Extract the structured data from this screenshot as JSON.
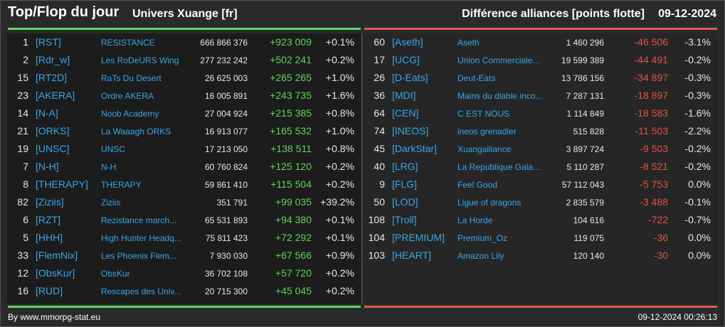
{
  "header": {
    "title": "Top/Flop du jour",
    "universe": "Univers Xuange [fr]",
    "subtitle": "Différence alliances [points flotte]",
    "date": "09-12-2024"
  },
  "colors": {
    "gain": "#5cd65c",
    "loss": "#e0524b",
    "link": "#3aa6e8"
  },
  "top": [
    {
      "rank": "1",
      "tag": "[RST]",
      "name": "RESISTANCE",
      "points": "666 866 376",
      "delta": "+923 009",
      "pct": "+0.1%"
    },
    {
      "rank": "2",
      "tag": "[Rdr_w]",
      "name": "Les RoDeURS Wing",
      "points": "277 232 242",
      "delta": "+502 241",
      "pct": "+0.2%"
    },
    {
      "rank": "15",
      "tag": "[RT2D]",
      "name": "RaTs Du Desert",
      "points": "26 625 003",
      "delta": "+265 265",
      "pct": "+1.0%"
    },
    {
      "rank": "23",
      "tag": "[AKERA]",
      "name": "Ordre AKERA",
      "points": "16 005 891",
      "delta": "+243 735",
      "pct": "+1.6%"
    },
    {
      "rank": "14",
      "tag": "[N-A]",
      "name": "Noob Academy",
      "points": "27 004 924",
      "delta": "+215 385",
      "pct": "+0.8%"
    },
    {
      "rank": "21",
      "tag": "[ORKS]",
      "name": "La Waaagh ORKS",
      "points": "16 913 077",
      "delta": "+165 532",
      "pct": "+1.0%"
    },
    {
      "rank": "19",
      "tag": "[UNSC]",
      "name": "UNSC",
      "points": "17 213 050",
      "delta": "+138 511",
      "pct": "+0.8%"
    },
    {
      "rank": "7",
      "tag": "[N-H]",
      "name": "N-H",
      "points": "60 760 824",
      "delta": "+125 120",
      "pct": "+0.2%"
    },
    {
      "rank": "8",
      "tag": "[THERAPY]",
      "name": "THERAPY",
      "points": "59 861 410",
      "delta": "+115 504",
      "pct": "+0.2%"
    },
    {
      "rank": "82",
      "tag": "[Ziziis]",
      "name": "Ziziis",
      "points": "351 791",
      "delta": "+99 035",
      "pct": "+39.2%"
    },
    {
      "rank": "6",
      "tag": "[RZT]",
      "name": "Rezistance march...",
      "points": "65 531 893",
      "delta": "+94 380",
      "pct": "+0.1%"
    },
    {
      "rank": "5",
      "tag": "[HHH]",
      "name": "High Hunter Headq...",
      "points": "75 811 423",
      "delta": "+72 292",
      "pct": "+0.1%"
    },
    {
      "rank": "33",
      "tag": "[FlemNix]",
      "name": "Les Phoenix Flem...",
      "points": "7 930 030",
      "delta": "+67 566",
      "pct": "+0.9%"
    },
    {
      "rank": "12",
      "tag": "[ObsKur]",
      "name": "ObsKur",
      "points": "36 702 108",
      "delta": "+57 720",
      "pct": "+0.2%"
    },
    {
      "rank": "16",
      "tag": "[RUD]",
      "name": "Rescapes des Univ...",
      "points": "20 715 300",
      "delta": "+45 045",
      "pct": "+0.2%"
    }
  ],
  "flop": [
    {
      "rank": "60",
      "tag": "[Aseth]",
      "name": "Aseth",
      "points": "1 460 296",
      "delta": "-46 506",
      "pct": "-3.1%"
    },
    {
      "rank": "17",
      "tag": "[UCG]",
      "name": "Union Commerciale...",
      "points": "19 599 389",
      "delta": "-44 491",
      "pct": "-0.2%"
    },
    {
      "rank": "26",
      "tag": "[D-Eats]",
      "name": "Deut-Eats",
      "points": "13 786 156",
      "delta": "-34 897",
      "pct": "-0.3%"
    },
    {
      "rank": "36",
      "tag": "[MDI]",
      "name": "Mains du diable inco...",
      "points": "7 287 131",
      "delta": "-18 897",
      "pct": "-0.3%"
    },
    {
      "rank": "64",
      "tag": "[CEN]",
      "name": "C EST NOUS",
      "points": "1 114 849",
      "delta": "-18 583",
      "pct": "-1.6%"
    },
    {
      "rank": "74",
      "tag": "[INEOS]",
      "name": "ineos grenadier",
      "points": "515 828",
      "delta": "-11 503",
      "pct": "-2.2%"
    },
    {
      "rank": "45",
      "tag": "[DarkStar]",
      "name": "Xuangalliance",
      "points": "3 897 724",
      "delta": "-9 503",
      "pct": "-0.2%"
    },
    {
      "rank": "40",
      "tag": "[LRG]",
      "name": "La Republique Gala...",
      "points": "5 110 287",
      "delta": "-8 521",
      "pct": "-0.2%"
    },
    {
      "rank": "9",
      "tag": "[FLG]",
      "name": "Feel Good",
      "points": "57 112 043",
      "delta": "-5 753",
      "pct": "0.0%"
    },
    {
      "rank": "50",
      "tag": "[LOD]",
      "name": "Ligue of dragons",
      "points": "2 835 579",
      "delta": "-3 488",
      "pct": "-0.1%"
    },
    {
      "rank": "108",
      "tag": "[Troll]",
      "name": "La Horde",
      "points": "104 616",
      "delta": "-722",
      "pct": "-0.7%"
    },
    {
      "rank": "104",
      "tag": "[PREMIUM]",
      "name": "Premium_Oz",
      "points": "119 075",
      "delta": "-36",
      "pct": "0.0%"
    },
    {
      "rank": "103",
      "tag": "[HEART]",
      "name": "Amazon Lily",
      "points": "120 140",
      "delta": "-30",
      "pct": "0.0%"
    }
  ],
  "footer": {
    "source": "By www.mmorpg-stat.eu",
    "timestamp": "09-12-2024 00:26:13"
  }
}
